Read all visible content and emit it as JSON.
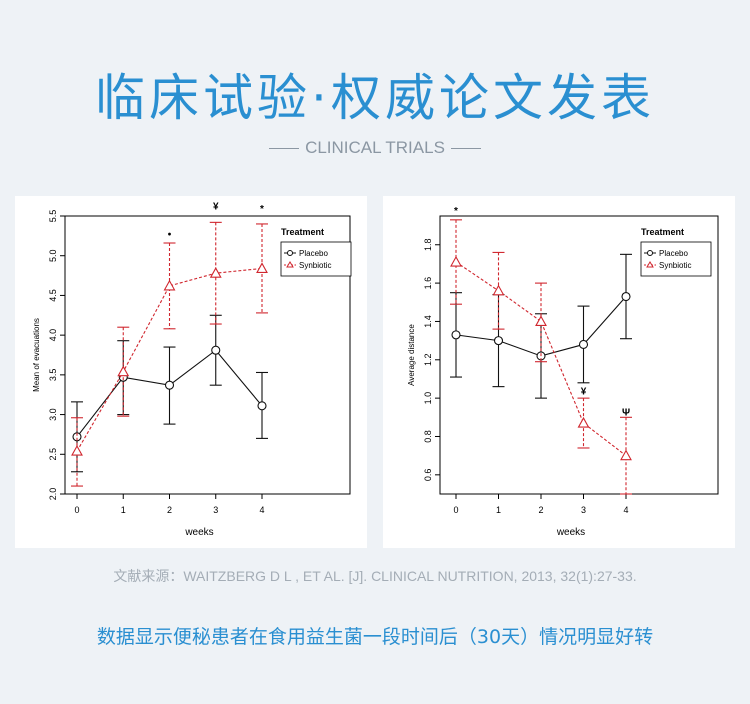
{
  "header": {
    "title": "临床试验·权威论文发表",
    "subtitle": "CLINICAL TRIALS"
  },
  "footer": {
    "citation": "文献来源：WAITZBERG D L , ET AL. [J]. CLINICAL NUTRITION, 2013, 32(1):27-33.",
    "caption": "数据显示便秘患者在食用益生菌一段时间后（30天）情况明显好转"
  },
  "colors": {
    "placebo": "#111111",
    "synbiotic": "#d0262e",
    "accent": "#2a8fd1"
  },
  "chart_data": [
    {
      "type": "line",
      "title": "",
      "xlabel": "weeks",
      "ylabel": "Mean of evacuations",
      "xlim": [
        0,
        4
      ],
      "ylim": [
        2.0,
        5.5
      ],
      "x_ticks": [
        "0",
        "1",
        "2",
        "3",
        "4"
      ],
      "y_ticks": [
        "2.0",
        "2.5",
        "3.0",
        "3.5",
        "4.0",
        "4.5",
        "5.0",
        "5.5"
      ],
      "legend": {
        "title": "Treatment",
        "position": "top-right",
        "entries": [
          "Placebo",
          "Synbiotic"
        ]
      },
      "annotations": [
        {
          "x": 2,
          "y": 5.23,
          "text": "•"
        },
        {
          "x": 3,
          "y": 5.58,
          "text": "¥"
        },
        {
          "x": 4,
          "y": 5.55,
          "text": "*"
        }
      ],
      "series": [
        {
          "name": "Placebo",
          "marker": "circle",
          "style": "solid",
          "x": [
            0,
            1,
            2,
            3,
            4
          ],
          "y": [
            2.72,
            3.47,
            3.37,
            3.81,
            3.11
          ],
          "lower": [
            2.28,
            3.0,
            2.88,
            3.37,
            2.7
          ],
          "upper": [
            3.16,
            3.93,
            3.85,
            4.25,
            3.53
          ]
        },
        {
          "name": "Synbiotic",
          "marker": "triangle",
          "style": "dashed",
          "x": [
            0,
            1,
            2,
            3,
            4
          ],
          "y": [
            2.54,
            3.54,
            4.62,
            4.78,
            4.84
          ],
          "lower": [
            2.1,
            2.98,
            4.08,
            4.14,
            4.28
          ],
          "upper": [
            2.96,
            4.1,
            5.16,
            5.42,
            5.4
          ]
        }
      ]
    },
    {
      "type": "line",
      "title": "",
      "xlabel": "weeks",
      "ylabel": "Average distance",
      "xlim": [
        0,
        4
      ],
      "ylim": [
        0.5,
        1.95
      ],
      "x_ticks": [
        "0",
        "1",
        "2",
        "3",
        "4"
      ],
      "y_ticks": [
        "0.6",
        "0.8",
        "1.0",
        "1.2",
        "1.4",
        "1.6",
        "1.8"
      ],
      "legend": {
        "title": "Treatment",
        "position": "top-right",
        "entries": [
          "Placebo",
          "Synbiotic"
        ]
      },
      "annotations": [
        {
          "x": 0,
          "y": 1.96,
          "text": "*"
        },
        {
          "x": 3,
          "y": 1.02,
          "text": "¥"
        },
        {
          "x": 4,
          "y": 0.91,
          "text": "Ψ"
        }
      ],
      "series": [
        {
          "name": "Placebo",
          "marker": "circle",
          "style": "solid",
          "x": [
            0,
            1,
            2,
            3,
            4
          ],
          "y": [
            1.33,
            1.3,
            1.22,
            1.28,
            1.53
          ],
          "lower": [
            1.11,
            1.06,
            1.0,
            1.08,
            1.31
          ],
          "upper": [
            1.55,
            1.54,
            1.44,
            1.48,
            1.75
          ]
        },
        {
          "name": "Synbiotic",
          "marker": "triangle",
          "style": "dashed",
          "x": [
            0,
            1,
            2,
            3,
            4
          ],
          "y": [
            1.71,
            1.56,
            1.4,
            0.87,
            0.7
          ],
          "lower": [
            1.49,
            1.36,
            1.19,
            0.74,
            0.5
          ],
          "upper": [
            1.93,
            1.76,
            1.6,
            1.0,
            0.9
          ]
        }
      ]
    }
  ]
}
